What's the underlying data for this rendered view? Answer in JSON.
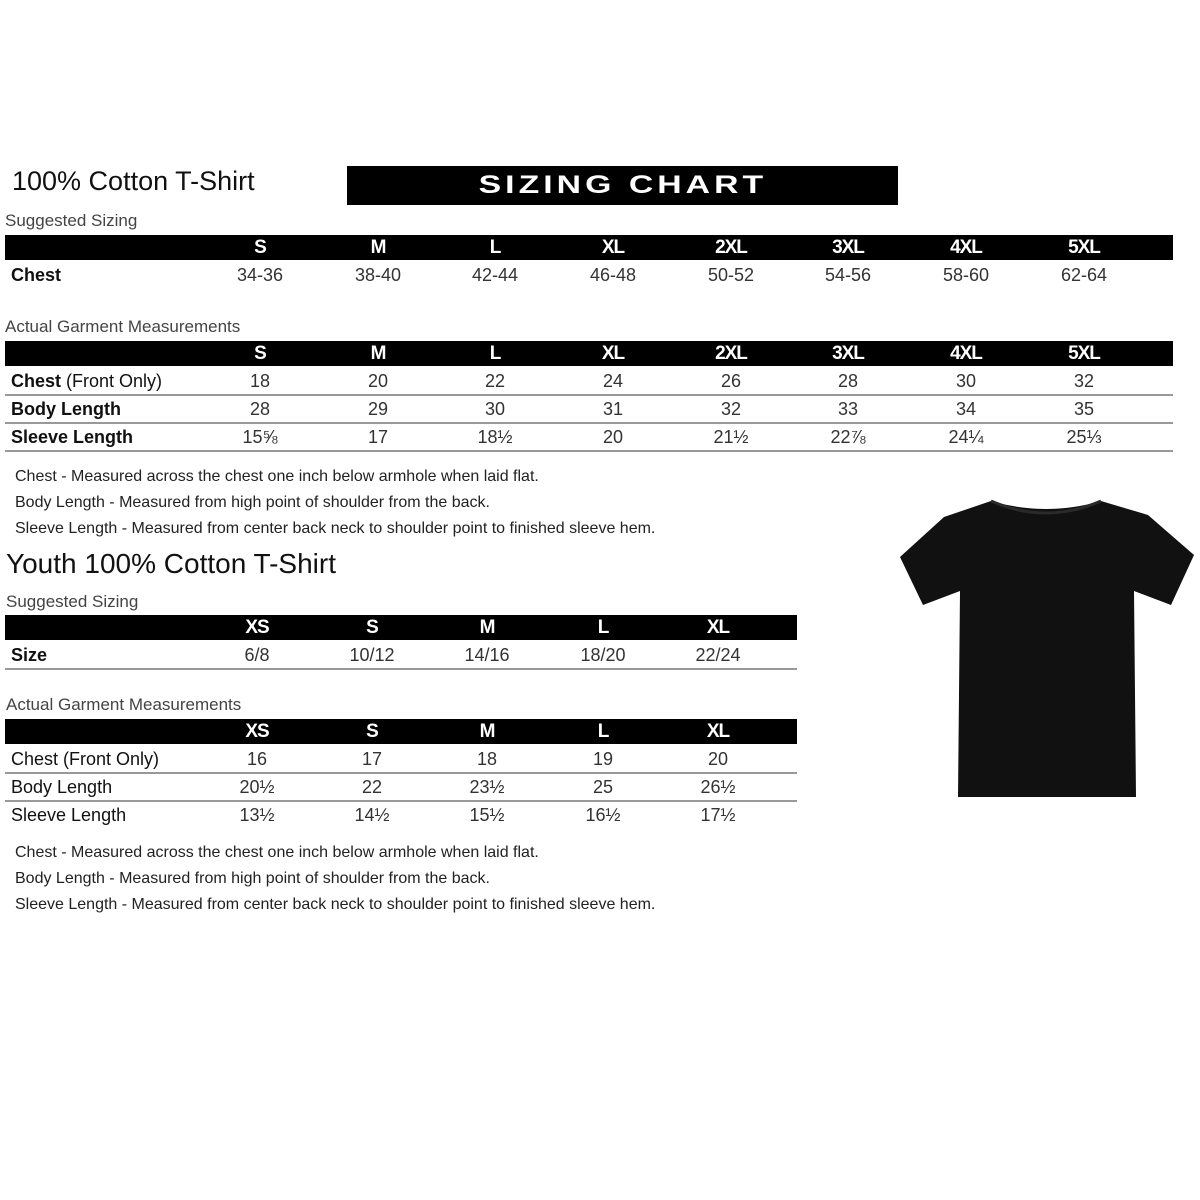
{
  "adult": {
    "title": "100% Cotton T-Shirt",
    "banner": "SIZING CHART",
    "suggested": {
      "label": "Suggested Sizing",
      "sizes": [
        "S",
        "M",
        "L",
        "XL",
        "2XL",
        "3XL",
        "4XL",
        "5XL"
      ],
      "rows": [
        {
          "label": "Chest",
          "label_light": "",
          "values": [
            "34-36",
            "38-40",
            "42-44",
            "46-48",
            "50-52",
            "54-56",
            "58-60",
            "62-64"
          ]
        }
      ]
    },
    "actual": {
      "label": "Actual Garment Measurements",
      "sizes": [
        "S",
        "M",
        "L",
        "XL",
        "2XL",
        "3XL",
        "4XL",
        "5XL"
      ],
      "rows": [
        {
          "label": "Chest",
          "label_light": " (Front Only)",
          "values": [
            "18",
            "20",
            "22",
            "24",
            "26",
            "28",
            "30",
            "32"
          ]
        },
        {
          "label": "Body Length",
          "label_light": "",
          "values": [
            "28",
            "29",
            "30",
            "31",
            "32",
            "33",
            "34",
            "35"
          ]
        },
        {
          "label": "Sleeve Length",
          "label_light": "",
          "values": [
            "15⅝",
            "17",
            "18½",
            "20",
            "21½",
            "22⅞",
            "24¼",
            "25⅓"
          ]
        }
      ]
    },
    "notes": [
      "Chest - Measured across the chest one inch below armhole when laid flat.",
      "Body Length - Measured from high point of shoulder from the back.",
      "Sleeve Length - Measured from center back neck to shoulder point to finished sleeve hem."
    ]
  },
  "youth": {
    "title": "Youth 100% Cotton T-Shirt",
    "suggested": {
      "label": "Suggested Sizing",
      "sizes": [
        "XS",
        "S",
        "M",
        "L",
        "XL"
      ],
      "rows": [
        {
          "label": "Size",
          "label_light": "",
          "values": [
            "6/8",
            "10/12",
            "14/16",
            "18/20",
            "22/24"
          ]
        }
      ]
    },
    "actual": {
      "label": "Actual Garment Measurements",
      "sizes": [
        "XS",
        "S",
        "M",
        "L",
        "XL"
      ],
      "rows": [
        {
          "label": "",
          "label_light": "Chest (Front Only)",
          "values": [
            "16",
            "17",
            "18",
            "19",
            "20"
          ]
        },
        {
          "label": "",
          "label_light": "Body Length",
          "values": [
            "20½",
            "22",
            "23½",
            "25",
            "26½"
          ]
        },
        {
          "label": "",
          "label_light": "Sleeve Length",
          "values": [
            "13½",
            "14½",
            "15½",
            "16½",
            "17½"
          ]
        }
      ]
    },
    "notes": [
      "Chest - Measured across the chest one inch below armhole when laid flat.",
      "Body Length - Measured from high point of shoulder from the back.",
      "Sleeve Length - Measured from center back neck to shoulder point to finished sleeve hem."
    ]
  },
  "image": {
    "icon": "t-shirt-icon",
    "color": "#111111"
  }
}
